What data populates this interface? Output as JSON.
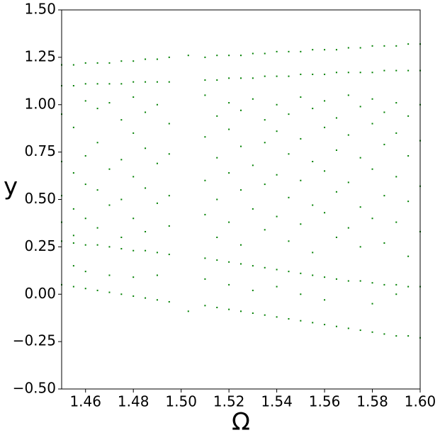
{
  "chart_data": {
    "type": "scatter",
    "xlabel": "Ω",
    "ylabel": "y",
    "color": "#008000",
    "xlim": [
      1.45,
      1.6
    ],
    "ylim": [
      -0.5,
      1.5
    ],
    "xticks": [
      1.46,
      1.48,
      {
        "value": 1.5,
        "label": "1.50"
      },
      1.52,
      1.54,
      1.56,
      1.58,
      {
        "value": 1.6,
        "label": "1.60"
      }
    ],
    "yticks": [
      {
        "value": -0.5,
        "label": "−0.50"
      },
      {
        "value": -0.25,
        "label": "−0.25"
      },
      {
        "value": 0,
        "label": "0.00"
      },
      0.25,
      {
        "value": 0.5,
        "label": "0.50"
      },
      0.75,
      {
        "value": 1,
        "label": "1.00"
      },
      1.25,
      {
        "value": 1.5,
        "label": "1.50"
      }
    ],
    "x": [
      1.45,
      1.45,
      1.45,
      1.45,
      1.45,
      1.45,
      1.45,
      1.45,
      1.455,
      1.455,
      1.455,
      1.455,
      1.455,
      1.455,
      1.455,
      1.455,
      1.455,
      1.46,
      1.46,
      1.46,
      1.46,
      1.46,
      1.46,
      1.46,
      1.46,
      1.46,
      1.465,
      1.465,
      1.465,
      1.465,
      1.465,
      1.465,
      1.465,
      1.465,
      1.47,
      1.47,
      1.47,
      1.47,
      1.47,
      1.47,
      1.47,
      1.47,
      1.475,
      1.475,
      1.475,
      1.475,
      1.475,
      1.475,
      1.475,
      1.475,
      1.48,
      1.48,
      1.48,
      1.48,
      1.48,
      1.48,
      1.48,
      1.48,
      1.48,
      1.485,
      1.485,
      1.485,
      1.485,
      1.485,
      1.485,
      1.485,
      1.485,
      1.49,
      1.49,
      1.49,
      1.49,
      1.49,
      1.49,
      1.49,
      1.49,
      1.495,
      1.495,
      1.495,
      1.495,
      1.495,
      1.495,
      1.495,
      1.495,
      1.503,
      1.503,
      1.51,
      1.51,
      1.51,
      1.51,
      1.51,
      1.51,
      1.51,
      1.51,
      1.51,
      1.515,
      1.515,
      1.515,
      1.515,
      1.515,
      1.515,
      1.515,
      1.515,
      1.52,
      1.52,
      1.52,
      1.52,
      1.52,
      1.52,
      1.52,
      1.52,
      1.52,
      1.525,
      1.525,
      1.525,
      1.525,
      1.525,
      1.525,
      1.525,
      1.525,
      1.53,
      1.53,
      1.53,
      1.53,
      1.53,
      1.53,
      1.53,
      1.53,
      1.535,
      1.535,
      1.535,
      1.535,
      1.535,
      1.535,
      1.535,
      1.535,
      1.54,
      1.54,
      1.54,
      1.54,
      1.54,
      1.54,
      1.54,
      1.54,
      1.54,
      1.545,
      1.545,
      1.545,
      1.545,
      1.545,
      1.545,
      1.545,
      1.545,
      1.55,
      1.55,
      1.55,
      1.55,
      1.55,
      1.55,
      1.55,
      1.55,
      1.55,
      1.555,
      1.555,
      1.555,
      1.555,
      1.555,
      1.555,
      1.555,
      1.555,
      1.56,
      1.56,
      1.56,
      1.56,
      1.56,
      1.56,
      1.56,
      1.56,
      1.56,
      1.565,
      1.565,
      1.565,
      1.565,
      1.565,
      1.565,
      1.565,
      1.565,
      1.57,
      1.57,
      1.57,
      1.57,
      1.57,
      1.57,
      1.57,
      1.57,
      1.575,
      1.575,
      1.575,
      1.575,
      1.575,
      1.575,
      1.575,
      1.575,
      1.58,
      1.58,
      1.58,
      1.58,
      1.58,
      1.58,
      1.58,
      1.58,
      1.58,
      1.585,
      1.585,
      1.585,
      1.585,
      1.585,
      1.585,
      1.585,
      1.585,
      1.59,
      1.59,
      1.59,
      1.59,
      1.59,
      1.59,
      1.59,
      1.59,
      1.59,
      1.595,
      1.595,
      1.595,
      1.595,
      1.595,
      1.595,
      1.595,
      1.595,
      1.6,
      1.6,
      1.6,
      1.6,
      1.6,
      1.6,
      1.6,
      1.6
    ],
    "values": [
      1.21,
      1.1,
      0.95,
      0.7,
      0.52,
      0.38,
      0.28,
      0.05,
      1.21,
      1.1,
      0.88,
      0.64,
      0.45,
      0.31,
      0.27,
      0.04,
      0.15,
      1.22,
      1.11,
      1.02,
      0.73,
      0.58,
      0.4,
      0.26,
      0.03,
      0.12,
      1.22,
      1.11,
      0.98,
      0.8,
      0.55,
      0.35,
      0.26,
      0.02,
      1.22,
      1.11,
      1.01,
      0.66,
      0.47,
      0.25,
      0.01,
      0.1,
      1.23,
      1.11,
      0.92,
      0.71,
      0.5,
      0.3,
      0.24,
      0.0,
      1.23,
      1.12,
      1.04,
      0.85,
      0.62,
      0.4,
      0.23,
      -0.01,
      0.09,
      1.24,
      1.12,
      0.96,
      0.77,
      0.56,
      0.33,
      0.23,
      -0.02,
      1.24,
      1.12,
      1.0,
      0.69,
      0.48,
      0.22,
      -0.03,
      0.1,
      1.25,
      1.12,
      0.9,
      0.74,
      0.52,
      0.36,
      0.21,
      -0.04,
      1.26,
      -0.09,
      1.25,
      1.13,
      1.05,
      0.83,
      0.6,
      0.42,
      0.19,
      -0.06,
      0.08,
      1.26,
      1.13,
      0.94,
      0.72,
      0.5,
      0.3,
      0.18,
      -0.07,
      1.26,
      1.14,
      1.01,
      0.87,
      0.64,
      0.38,
      0.17,
      -0.08,
      0.05,
      1.26,
      1.14,
      0.97,
      0.78,
      0.55,
      0.26,
      0.16,
      -0.09,
      1.27,
      1.14,
      1.03,
      0.68,
      0.45,
      0.15,
      -0.1,
      0.02,
      1.27,
      1.15,
      0.92,
      0.8,
      0.58,
      0.34,
      0.14,
      -0.11,
      1.28,
      1.15,
      1.0,
      0.86,
      0.63,
      0.41,
      0.13,
      -0.12,
      0.04,
      1.28,
      1.15,
      0.95,
      0.74,
      0.51,
      0.28,
      0.12,
      -0.13,
      1.28,
      1.16,
      1.04,
      0.82,
      0.6,
      0.37,
      0.11,
      -0.14,
      0.0,
      1.29,
      1.16,
      0.98,
      0.7,
      0.47,
      0.22,
      0.1,
      -0.15,
      1.29,
      1.16,
      1.02,
      0.88,
      0.65,
      0.43,
      0.09,
      -0.16,
      -0.03,
      1.29,
      1.17,
      0.93,
      0.76,
      0.54,
      0.3,
      0.08,
      -0.17,
      1.3,
      1.17,
      1.05,
      0.84,
      0.59,
      0.35,
      0.07,
      -0.18,
      1.3,
      1.17,
      0.99,
      0.72,
      0.46,
      0.25,
      0.07,
      -0.19,
      1.31,
      1.17,
      1.03,
      0.9,
      0.66,
      0.4,
      0.06,
      -0.2,
      -0.05,
      1.31,
      1.18,
      0.96,
      0.79,
      0.52,
      0.27,
      0.05,
      -0.21,
      1.31,
      1.18,
      1.01,
      0.85,
      0.62,
      0.38,
      0.05,
      -0.22,
      0.0,
      1.32,
      1.18,
      0.94,
      0.73,
      0.49,
      0.2,
      0.04,
      -0.22,
      1.32,
      1.18,
      1.0,
      0.81,
      0.57,
      0.33,
      0.04,
      -0.23
    ]
  }
}
